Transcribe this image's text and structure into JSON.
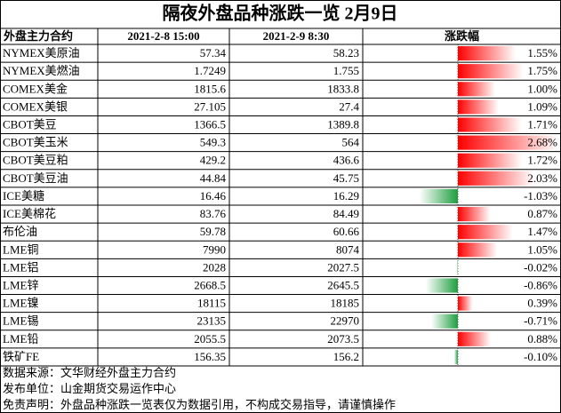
{
  "title": "隔夜外盘品种涨跌一览 2月9日",
  "table": {
    "header": [
      "外盘主力合约",
      "2021-2-8 15:00",
      "2021-2-9 8:30",
      "涨跌幅"
    ],
    "rows": [
      [
        "NYMEX美原油",
        "57.34",
        "58.23",
        {
          "value": 1.55,
          "label": "1.55%"
        }
      ],
      [
        "NYMEX美燃油",
        "1.7249",
        "1.755",
        {
          "value": 1.75,
          "label": "1.75%"
        }
      ],
      [
        "COMEX美金",
        "1815.6",
        "1833.8",
        {
          "value": 1.0,
          "label": "1.00%"
        }
      ],
      [
        "COMEX美银",
        "27.105",
        "27.4",
        {
          "value": 1.09,
          "label": "1.09%"
        }
      ],
      [
        "CBOT美豆",
        "1366.5",
        "1389.8",
        {
          "value": 1.71,
          "label": "1.71%"
        }
      ],
      [
        "CBOT美玉米",
        "549.3",
        "564",
        {
          "value": 2.68,
          "label": "2.68%"
        }
      ],
      [
        "CBOT美豆粕",
        "429.2",
        "436.6",
        {
          "value": 1.72,
          "label": "1.72%"
        }
      ],
      [
        "CBOT美豆油",
        "44.84",
        "45.75",
        {
          "value": 2.03,
          "label": "2.03%"
        }
      ],
      [
        "ICE美糖",
        "16.46",
        "16.29",
        {
          "value": -1.03,
          "label": "-1.03%"
        }
      ],
      [
        "ICE美棉花",
        "83.76",
        "84.49",
        {
          "value": 0.87,
          "label": "0.87%"
        }
      ],
      [
        "布伦油",
        "59.78",
        "60.66",
        {
          "value": 1.47,
          "label": "1.47%"
        }
      ],
      [
        "LME铜",
        "7990",
        "8074",
        {
          "value": 1.05,
          "label": "1.05%"
        }
      ],
      [
        "LME铝",
        "2028",
        "2027.5",
        {
          "value": -0.02,
          "label": "-0.02%"
        }
      ],
      [
        "LME锌",
        "2668.5",
        "2645.5",
        {
          "value": -0.86,
          "label": "-0.86%"
        }
      ],
      [
        "LME镍",
        "18115",
        "18185",
        {
          "value": 0.39,
          "label": "0.39%"
        }
      ],
      [
        "LME锡",
        "23135",
        "22970",
        {
          "value": -0.71,
          "label": "-0.71%"
        }
      ],
      [
        "LME铅",
        "2055.5",
        "2073.5",
        {
          "value": 0.88,
          "label": "0.88%"
        }
      ],
      [
        "铁矿FE",
        "156.35",
        "156.2",
        {
          "value": -0.1,
          "label": "-0.10%"
        }
      ]
    ]
  },
  "footer": [
    "数据来源：文华财经外盘主力合约",
    "发布单位：山金期货交易运作中心",
    "免责声明：外盘品种涨跌一览表仅为数据引用，不构成交易指导，请谨慎操作"
  ]
}
